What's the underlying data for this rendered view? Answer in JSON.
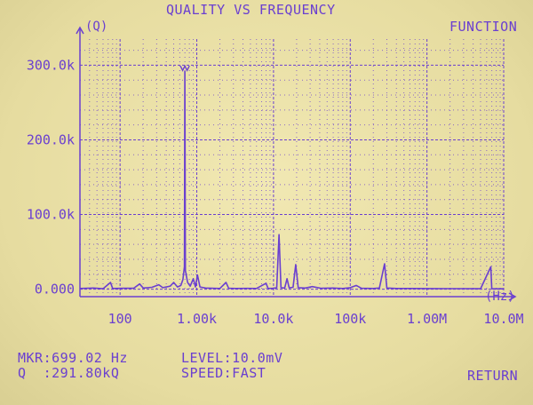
{
  "header": {
    "title": "QUALITY VS FREQUENCY",
    "function_label": "FUNCTION"
  },
  "chart_data": {
    "type": "line",
    "title": "QUALITY VS FREQUENCY",
    "ylabel": "(Q)",
    "xlabel": "(Hz)",
    "x_scale": "log",
    "xlim": [
      30,
      10000000
    ],
    "ylim": [
      -10000,
      335000
    ],
    "grid": true,
    "y_ticks": [
      {
        "value": 300000,
        "label": "300.0k"
      },
      {
        "value": 200000,
        "label": "200.0k"
      },
      {
        "value": 100000,
        "label": "100.0k"
      },
      {
        "value": 0,
        "label": "0.000"
      }
    ],
    "x_ticks": [
      {
        "value": 100,
        "label": "100"
      },
      {
        "value": 1000,
        "label": "1.00k"
      },
      {
        "value": 10000,
        "label": "10.0k"
      },
      {
        "value": 100000,
        "label": "100k"
      },
      {
        "value": 1000000,
        "label": "1.00M"
      },
      {
        "value": 10000000,
        "label": "10.0M"
      }
    ],
    "series": [
      {
        "points": [
          [
            30,
            1000
          ],
          [
            45,
            1500
          ],
          [
            60,
            600
          ],
          [
            75,
            9000
          ],
          [
            80,
            1000
          ],
          [
            110,
            1200
          ],
          [
            150,
            1200
          ],
          [
            180,
            7000
          ],
          [
            200,
            1500
          ],
          [
            260,
            2500
          ],
          [
            320,
            6000
          ],
          [
            360,
            2000
          ],
          [
            450,
            4000
          ],
          [
            500,
            9000
          ],
          [
            560,
            3000
          ],
          [
            620,
            5000
          ],
          [
            660,
            13000
          ],
          [
            690,
            30000
          ],
          [
            699,
            291800
          ],
          [
            710,
            25000
          ],
          [
            760,
            9000
          ],
          [
            820,
            4000
          ],
          [
            900,
            14000
          ],
          [
            960,
            3000
          ],
          [
            1020,
            19000
          ],
          [
            1100,
            3000
          ],
          [
            1300,
            1500
          ],
          [
            1600,
            1200
          ],
          [
            2000,
            1000
          ],
          [
            2400,
            9000
          ],
          [
            2600,
            1200
          ],
          [
            3200,
            900
          ],
          [
            4500,
            1100
          ],
          [
            6000,
            1000
          ],
          [
            8000,
            8000
          ],
          [
            8500,
            1000
          ],
          [
            9800,
            1200
          ],
          [
            11000,
            1800
          ],
          [
            11800,
            73000
          ],
          [
            12500,
            2000
          ],
          [
            14000,
            1500
          ],
          [
            15000,
            14000
          ],
          [
            16000,
            1800
          ],
          [
            18000,
            2500
          ],
          [
            19500,
            33000
          ],
          [
            21000,
            2000
          ],
          [
            26000,
            1500
          ],
          [
            32000,
            3500
          ],
          [
            42000,
            1200
          ],
          [
            60000,
            1500
          ],
          [
            80000,
            1000
          ],
          [
            100000,
            2000
          ],
          [
            120000,
            5000
          ],
          [
            140000,
            1200
          ],
          [
            200000,
            1000
          ],
          [
            240000,
            1500
          ],
          [
            280000,
            34000
          ],
          [
            300000,
            1500
          ],
          [
            400000,
            1000
          ],
          [
            600000,
            900
          ],
          [
            1000000,
            800
          ],
          [
            2000000,
            700
          ],
          [
            5000000,
            600
          ],
          [
            6800000,
            30000
          ],
          [
            7000000,
            600
          ],
          [
            10000000,
            500
          ]
        ]
      }
    ],
    "marker": {
      "x": 699.02,
      "y": 291800
    }
  },
  "readout": {
    "mkr": "MKR:699.02 Hz",
    "q": "Q  :291.80kQ",
    "level": "LEVEL:10.0mV",
    "speed": "SPEED:FAST"
  },
  "footer": {
    "return_label": "RETURN"
  },
  "colors": {
    "ink": "#6a3fd0",
    "screen": "#e9e0a6"
  }
}
